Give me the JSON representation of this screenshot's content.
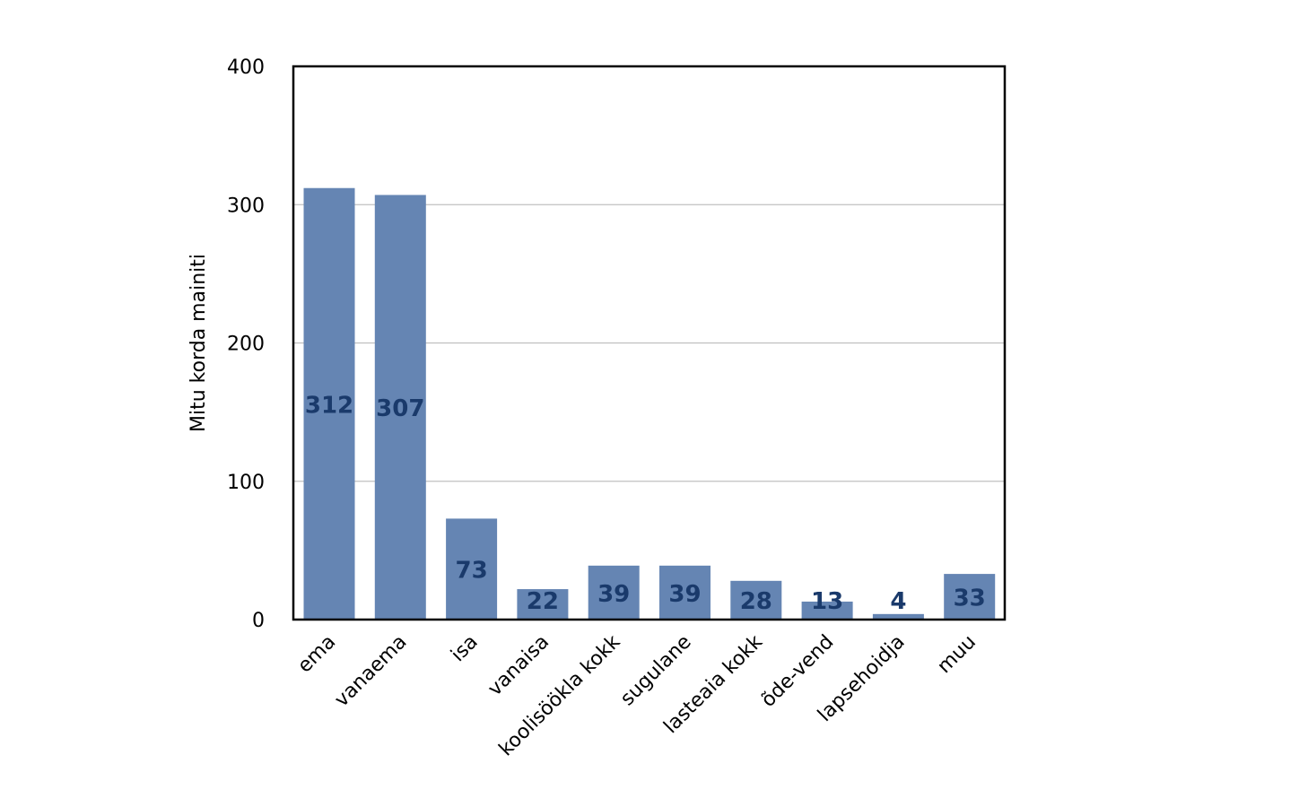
{
  "chart_data": {
    "type": "bar",
    "categories": [
      "ema",
      "vanaema",
      "isa",
      "vanaisa",
      "koolisöökla kokk",
      "sugulane",
      "lasteaia kokk",
      "õde-vend",
      "lapsehoidja",
      "muu"
    ],
    "values": [
      312,
      307,
      73,
      22,
      39,
      39,
      28,
      13,
      4,
      33
    ],
    "title": "",
    "xlabel": "",
    "ylabel": "Mitu korda mainiti",
    "ylim": [
      0,
      400
    ],
    "yticks": [
      0,
      100,
      200,
      300,
      400
    ],
    "grid": true,
    "legend": "none",
    "colors": {
      "bar": "#6585b3",
      "data_label": "#1a3a6b",
      "grid": "#c0c0c0",
      "frame": "#000000"
    }
  }
}
